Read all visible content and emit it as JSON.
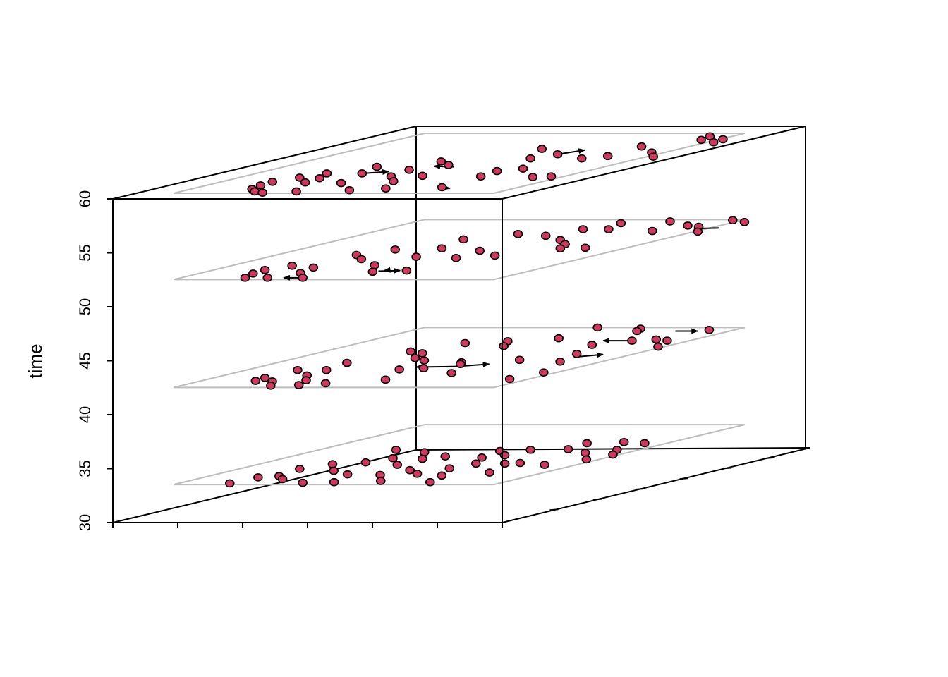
{
  "chart_data": {
    "type": "scatter",
    "projection": "3d-perspective-box",
    "zlabel": "time",
    "zlim": [
      30,
      60
    ],
    "z_ticks": [
      "30",
      "35",
      "40",
      "45",
      "50",
      "55",
      "60"
    ],
    "xlim": [
      0,
      6
    ],
    "ylim": [
      0,
      10
    ],
    "grid_color": "#bdbdbd",
    "point_color": "#d1385f",
    "layers": [
      {
        "time": 33,
        "points": [
          {
            "x": 1.6,
            "y": 0.2
          },
          {
            "x": 1.7,
            "y": 1.2
          },
          {
            "x": 1.9,
            "y": 2.6
          },
          {
            "x": 2.2,
            "y": 1.4
          },
          {
            "x": 2.3,
            "y": 3.4
          },
          {
            "x": 2.4,
            "y": 5.8
          },
          {
            "x": 2.7,
            "y": 0.9
          },
          {
            "x": 3.1,
            "y": 3.7
          },
          {
            "x": 3.2,
            "y": 2.3
          },
          {
            "x": 3.4,
            "y": 4.4
          },
          {
            "x": 3.6,
            "y": 5.4
          },
          {
            "x": 3.8,
            "y": 0.3
          },
          {
            "x": 4.1,
            "y": 1.7
          },
          {
            "x": 4.4,
            "y": 3.3
          },
          {
            "x": 4.4,
            "y": 4.3
          },
          {
            "x": 4.8,
            "y": 4.7
          },
          {
            "x": 4.7,
            "y": 0.4
          },
          {
            "x": 5.2,
            "y": 1.6
          },
          {
            "x": 5.5,
            "y": 2.4
          },
          {
            "x": 5.8,
            "y": 5.6
          },
          {
            "x": 6.0,
            "y": 0.6
          },
          {
            "x": 6.1,
            "y": 4.5
          },
          {
            "x": 6.2,
            "y": 1.8
          },
          {
            "x": 6.5,
            "y": 4.9
          },
          {
            "x": 6.5,
            "y": 2.7
          },
          {
            "x": 6.6,
            "y": 5.8
          },
          {
            "x": 6.7,
            "y": 3.5
          },
          {
            "x": 7.2,
            "y": 1.5
          },
          {
            "x": 7.5,
            "y": 6.9
          },
          {
            "x": 7.6,
            "y": 3.5
          },
          {
            "x": 7.7,
            "y": 0.4
          },
          {
            "x": 7.7,
            "y": 5.9
          },
          {
            "x": 8.3,
            "y": 2.0
          },
          {
            "x": 8.0,
            "y": 3.6
          },
          {
            "x": 8.5,
            "y": 7.1
          },
          {
            "x": 8.7,
            "y": 5.3
          },
          {
            "x": 9.3,
            "y": 5.8
          },
          {
            "x": 9.3,
            "y": 6.9
          },
          {
            "x": 9.0,
            "y": 3.3
          },
          {
            "x": 9.6,
            "y": 4.2
          },
          {
            "x": 9.8,
            "y": 5.0
          }
        ],
        "arrows": []
      },
      {
        "time": 42,
        "points": [
          {
            "x": 1.6,
            "y": 1.6
          },
          {
            "x": 1.6,
            "y": 2.9
          },
          {
            "x": 1.7,
            "y": 1.1
          },
          {
            "x": 2.2,
            "y": 4.1
          },
          {
            "x": 2.3,
            "y": 1.0
          },
          {
            "x": 2.5,
            "y": 2.9
          },
          {
            "x": 2.6,
            "y": 2.0
          },
          {
            "x": 2.7,
            "y": 6.0
          },
          {
            "x": 2.8,
            "y": 0.3
          },
          {
            "x": 3.2,
            "y": 1.2
          },
          {
            "x": 3.3,
            "y": 7.4
          },
          {
            "x": 3.3,
            "y": 5.7
          },
          {
            "x": 3.6,
            "y": 0.4
          },
          {
            "x": 3.7,
            "y": 4.9
          },
          {
            "x": 4.2,
            "y": 0.7
          },
          {
            "x": 4.3,
            "y": 4.5
          },
          {
            "x": 4.4,
            "y": 7.7
          },
          {
            "x": 4.7,
            "y": 3.0
          },
          {
            "x": 4.9,
            "y": 6.9
          },
          {
            "x": 5.3,
            "y": 3.2
          },
          {
            "x": 5.4,
            "y": 10.0
          },
          {
            "x": 5.6,
            "y": 8.2
          },
          {
            "x": 5.7,
            "y": 4.2
          },
          {
            "x": 5.6,
            "y": 1.3
          },
          {
            "x": 5.9,
            "y": 3.9
          },
          {
            "x": 6.8,
            "y": 2.4
          },
          {
            "x": 6.9,
            "y": 9.8
          },
          {
            "x": 7.1,
            "y": 9.4
          },
          {
            "x": 7.2,
            "y": 4.6
          },
          {
            "x": 7.5,
            "y": 7.1
          },
          {
            "x": 8.2,
            "y": 7.8
          },
          {
            "x": 8.2,
            "y": 5.6
          },
          {
            "x": 8.7,
            "y": 4.3
          },
          {
            "x": 8.8,
            "y": 8.0
          },
          {
            "x": 9.3,
            "y": 7.8
          },
          {
            "x": 9.4,
            "y": 1.4
          },
          {
            "x": 9.2,
            "y": 9.6
          },
          {
            "x": 9.6,
            "y": 2.5
          },
          {
            "x": 9.8,
            "y": 6.8
          }
        ],
        "arrows": [
          {
            "from": {
              "x": 6.1,
              "y": 3.5
            },
            "to": {
              "x": 4.9,
              "y": 3.4
            }
          },
          {
            "from": {
              "x": 6.1,
              "y": 3.5
            },
            "to": {
              "x": 6.8,
              "y": 3.9
            }
          },
          {
            "from": {
              "x": 8.2,
              "y": 7.8
            },
            "to": {
              "x": 7.3,
              "y": 7.8
            }
          },
          {
            "from": {
              "x": 8.6,
              "y": 5.1
            },
            "to": {
              "x": 9.1,
              "y": 5.5
            }
          },
          {
            "from": {
              "x": 8.3,
              "y": 9.4
            },
            "to": {
              "x": 9.0,
              "y": 9.4
            }
          }
        ]
      },
      {
        "time": 52,
        "points": [
          {
            "x": 1.6,
            "y": 1.6
          },
          {
            "x": 1.7,
            "y": 1.0
          },
          {
            "x": 1.9,
            "y": 2.3
          },
          {
            "x": 2.0,
            "y": 0.3
          },
          {
            "x": 2.5,
            "y": 4.1
          },
          {
            "x": 2.7,
            "y": 0.3
          },
          {
            "x": 2.8,
            "y": 2.0
          },
          {
            "x": 3.0,
            "y": 5.0
          },
          {
            "x": 3.1,
            "y": 1.1
          },
          {
            "x": 3.2,
            "y": 3.4
          },
          {
            "x": 3.8,
            "y": 0.3
          },
          {
            "x": 3.8,
            "y": 6.7
          },
          {
            "x": 4.3,
            "y": 5.2
          },
          {
            "x": 4.4,
            "y": 2.4
          },
          {
            "x": 4.6,
            "y": 3.8
          },
          {
            "x": 4.8,
            "y": 7.6
          },
          {
            "x": 5.2,
            "y": 1.3
          },
          {
            "x": 5.8,
            "y": 4.8
          },
          {
            "x": 5.9,
            "y": 7.3
          },
          {
            "x": 6.0,
            "y": 3.6
          },
          {
            "x": 6.1,
            "y": 1.5
          },
          {
            "x": 6.2,
            "y": 8.4
          },
          {
            "x": 6.6,
            "y": 9.4
          },
          {
            "x": 6.9,
            "y": 6.6
          },
          {
            "x": 6.9,
            "y": 4.0
          },
          {
            "x": 7.0,
            "y": 8.4
          },
          {
            "x": 7.6,
            "y": 5.9
          },
          {
            "x": 8.0,
            "y": 5.2
          },
          {
            "x": 7.9,
            "y": 9.7
          },
          {
            "x": 8.6,
            "y": 8.1
          },
          {
            "x": 8.7,
            "y": 5.3
          },
          {
            "x": 9.0,
            "y": 9.0
          },
          {
            "x": 9.5,
            "y": 8.8
          },
          {
            "x": 9.7,
            "y": 9.9
          },
          {
            "x": 10.1,
            "y": 8.0
          },
          {
            "x": 10.3,
            "y": 9.6
          }
        ],
        "arrows": [
          {
            "from": {
              "x": 3.8,
              "y": 0.3
            },
            "to": {
              "x": 3.2,
              "y": 0.3
            }
          },
          {
            "from": {
              "x": 5.3,
              "y": 1.4
            },
            "to": {
              "x": 5.9,
              "y": 1.5
            }
          },
          {
            "from": {
              "x": 5.5,
              "y": 1.6
            },
            "to": {
              "x": 5.4,
              "y": 1.5
            }
          },
          {
            "from": {
              "x": 10.3,
              "y": 8.6
            },
            "to": {
              "x": 9.6,
              "y": 8.5
            }
          }
        ]
      },
      {
        "time": 61,
        "points": [
          {
            "x": 1.6,
            "y": 1.9
          },
          {
            "x": 1.7,
            "y": 1.3
          },
          {
            "x": 1.9,
            "y": 2.6
          },
          {
            "x": 1.9,
            "y": 0.7
          },
          {
            "x": 2.2,
            "y": 3.3
          },
          {
            "x": 2.3,
            "y": 0.3
          },
          {
            "x": 2.6,
            "y": 2.5
          },
          {
            "x": 2.7,
            "y": 1.8
          },
          {
            "x": 2.7,
            "y": 0.1
          },
          {
            "x": 2.9,
            "y": 4.4
          },
          {
            "x": 3.3,
            "y": 3.3
          },
          {
            "x": 3.6,
            "y": 0.3
          },
          {
            "x": 3.9,
            "y": 1.7
          },
          {
            "x": 4.2,
            "y": 5.3
          },
          {
            "x": 4.3,
            "y": 3.9
          },
          {
            "x": 4.6,
            "y": 2.8
          },
          {
            "x": 4.9,
            "y": 4.7
          },
          {
            "x": 5.1,
            "y": 0.5
          },
          {
            "x": 5.3,
            "y": 2.0
          },
          {
            "x": 5.5,
            "y": 2.9
          },
          {
            "x": 5.7,
            "y": 7.4
          },
          {
            "x": 6.0,
            "y": 0.8
          },
          {
            "x": 6.6,
            "y": 5.8
          },
          {
            "x": 6.9,
            "y": 6.5
          },
          {
            "x": 7.2,
            "y": 3.7
          },
          {
            "x": 7.4,
            "y": 2.8
          },
          {
            "x": 7.6,
            "y": 1.0
          },
          {
            "x": 7.7,
            "y": 4.1
          },
          {
            "x": 8.2,
            "y": 5.8
          },
          {
            "x": 8.5,
            "y": 7.8
          },
          {
            "x": 8.7,
            "y": 6.2
          },
          {
            "x": 9.1,
            "y": 2.7
          },
          {
            "x": 9.3,
            "y": 9.5
          },
          {
            "x": 9.5,
            "y": 8.9
          },
          {
            "x": 9.6,
            "y": 6.8
          },
          {
            "x": 9.6,
            "y": 2.8
          },
          {
            "x": 10.1,
            "y": 9.0
          },
          {
            "x": 10.2,
            "y": 8.5
          },
          {
            "x": 10.2,
            "y": 6.1
          }
        ],
        "arrows": [
          {
            "from": {
              "x": 3.3,
              "y": 3.3
            },
            "to": {
              "x": 3.9,
              "y": 3.6
            }
          },
          {
            "from": {
              "x": 5.3,
              "y": 4.4
            },
            "to": {
              "x": 4.6,
              "y": 4.5
            }
          },
          {
            "from": {
              "x": 6.9,
              "y": 6.5
            },
            "to": {
              "x": 7.2,
              "y": 7.2
            }
          },
          {
            "from": {
              "x": 7.6,
              "y": 1.0
            },
            "to": {
              "x": 8.0,
              "y": 0.8
            }
          }
        ]
      }
    ]
  }
}
